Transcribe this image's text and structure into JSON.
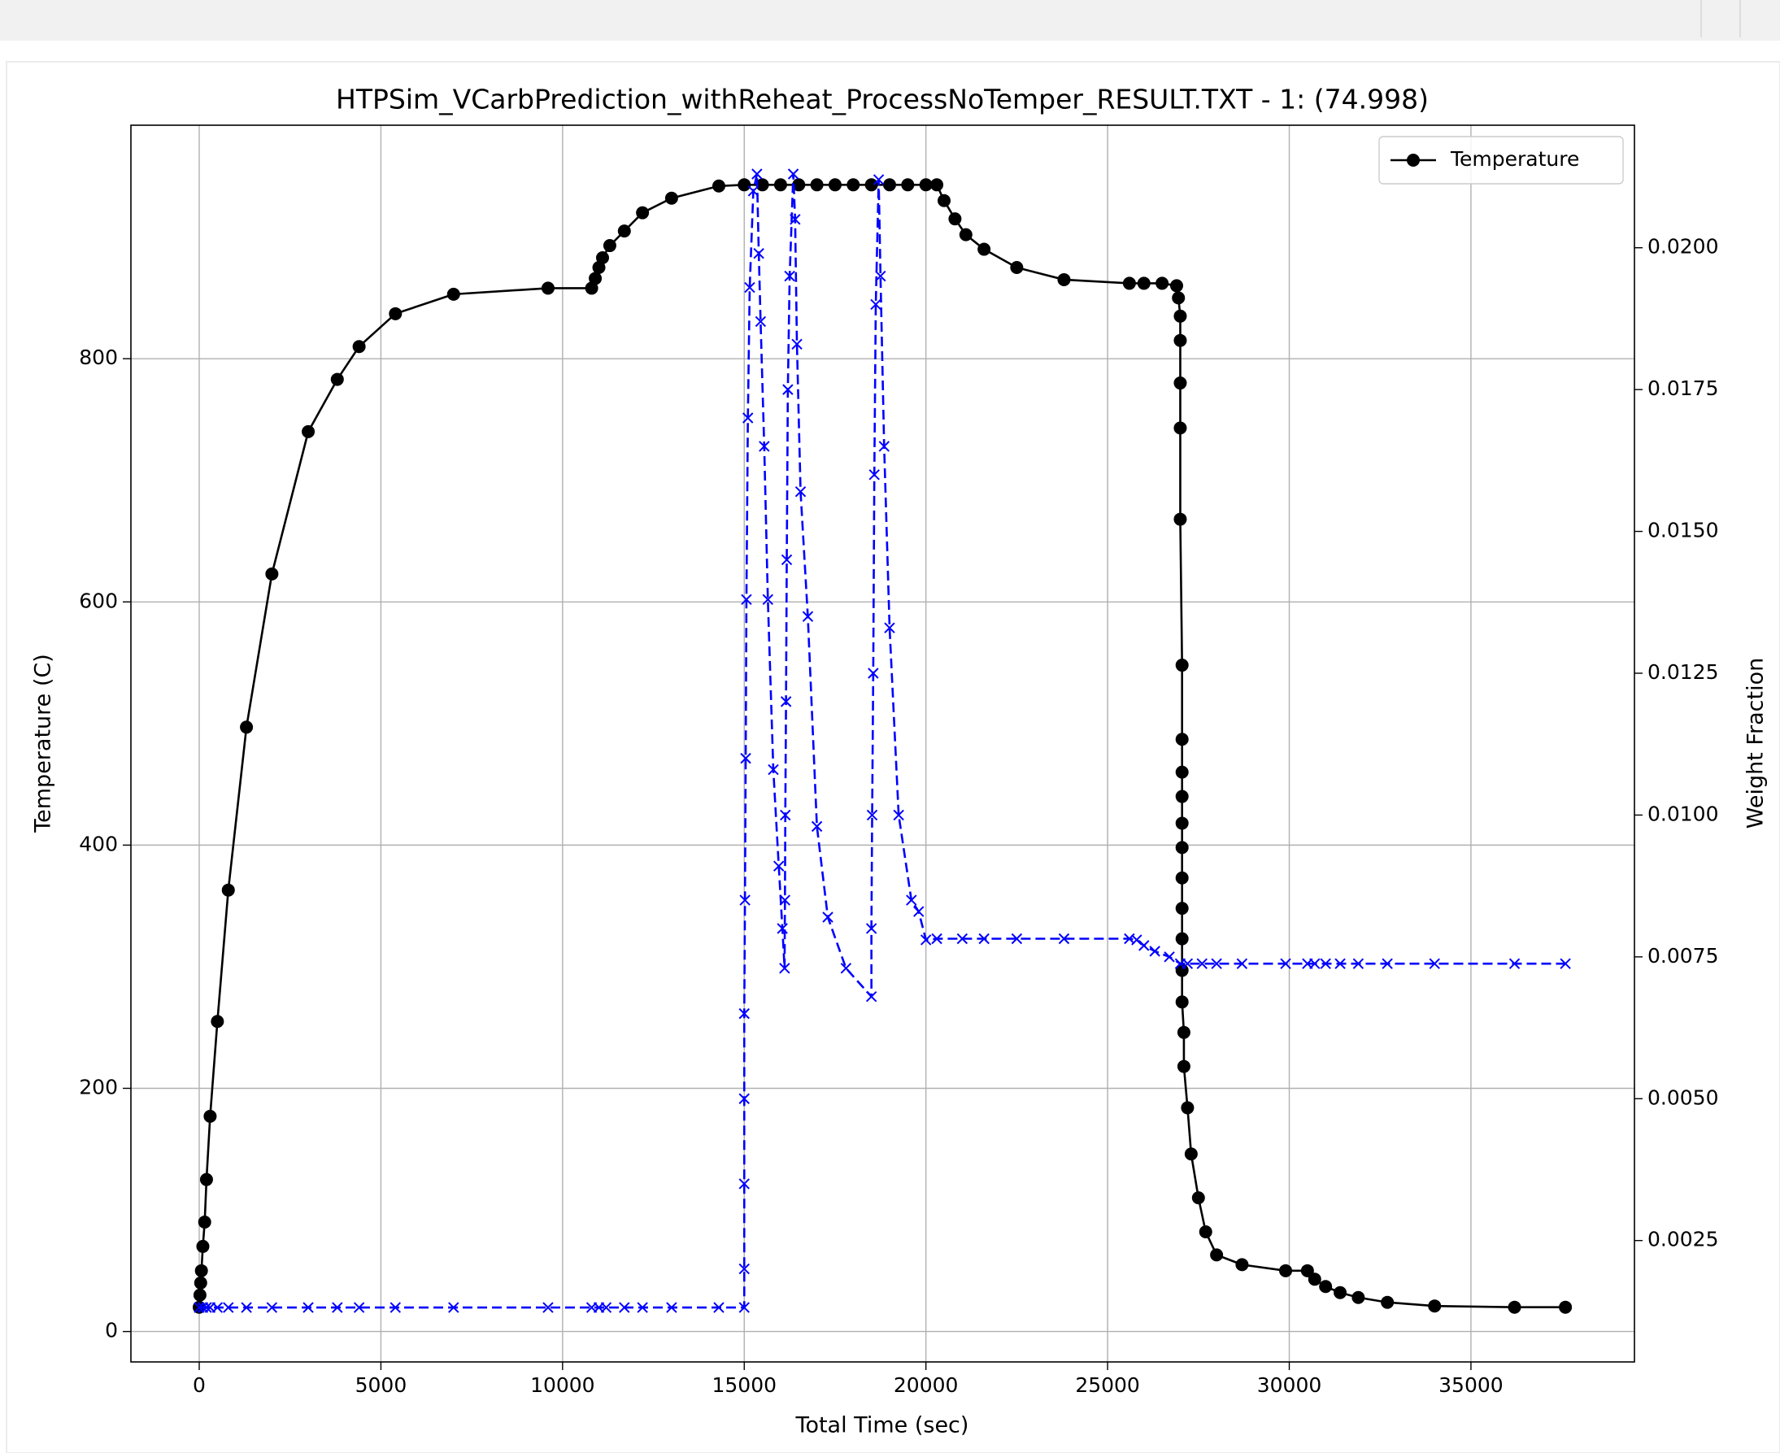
{
  "chart_data": {
    "type": "line",
    "title": "HTPSim_VCarbPrediction_withReheat_ProcessNoTemper_RESULT.TXT - 1: (74.998)",
    "x_label": "Total Time (sec)",
    "y_label": "Temperature (C)",
    "y2_label": "Weight Fraction",
    "xlim": [
      -1880,
      39500
    ],
    "ylim": [
      -25,
      992
    ],
    "y2lim": [
      0.00036,
      0.02216
    ],
    "xticks": [
      0,
      5000,
      10000,
      15000,
      20000,
      25000,
      30000,
      35000
    ],
    "yticks": [
      0,
      200,
      400,
      600,
      800
    ],
    "y2ticks": [
      0.0025,
      {
        "value": 0.005,
        "label": "0.0050"
      },
      0.0075,
      {
        "value": 0.01,
        "label": "0.0100"
      },
      0.0125,
      {
        "value": 0.015,
        "label": "0.0150"
      },
      0.0175,
      {
        "value": 0.02,
        "label": "0.0200"
      }
    ],
    "grid": true,
    "legend": "upper right",
    "series": [
      {
        "name": "Temperature",
        "color": "#000000",
        "marker": "o",
        "linestyle": "solid",
        "x": [
          0,
          20,
          40,
          60,
          100,
          150,
          200,
          300,
          500,
          800,
          1300,
          2000,
          3000,
          3800,
          4400,
          5400,
          7000,
          9600,
          10800,
          10900,
          11000,
          11100,
          11300,
          11700,
          12200,
          13000,
          14300,
          15000,
          15500,
          16000,
          16500,
          17000,
          17500,
          18000,
          18500,
          19000,
          19500,
          20000,
          20300,
          20500,
          20800,
          21100,
          21600,
          22500,
          23800,
          25600,
          26000,
          26500,
          26900,
          26950,
          27000,
          27000,
          27000,
          27000,
          27000,
          27050,
          27050,
          27050,
          27050,
          27050,
          27050,
          27050,
          27050,
          27050,
          27050,
          27050,
          27100,
          27100,
          27200,
          27300,
          27500,
          27700,
          28000,
          28700,
          29900,
          30500,
          30700,
          31000,
          31400,
          31900,
          32700,
          34000,
          36200,
          37600
        ],
        "values": [
          20,
          30,
          40,
          50,
          70,
          90,
          125,
          177,
          255,
          363,
          497,
          623,
          740,
          783,
          810,
          837,
          853,
          858,
          858,
          866,
          875,
          883,
          893,
          905,
          920,
          932,
          942,
          943,
          943,
          943,
          943,
          943,
          943,
          943,
          943,
          943,
          943,
          943,
          943,
          930,
          915,
          902,
          890,
          875,
          865,
          862,
          862,
          862,
          860,
          850,
          835,
          815,
          780,
          743,
          668,
          548,
          487,
          460,
          440,
          418,
          398,
          373,
          348,
          323,
          297,
          271,
          246,
          218,
          184,
          146,
          110,
          82,
          63,
          55,
          50,
          50,
          43,
          37,
          32,
          28,
          24,
          21,
          20,
          20
        ]
      },
      {
        "color": "#0000ff",
        "marker": "x",
        "linestyle": "dashed",
        "axis": "y2",
        "x": [
          0,
          100,
          200,
          300,
          500,
          800,
          1300,
          2000,
          3000,
          3800,
          4400,
          5400,
          7000,
          9600,
          10800,
          11000,
          11200,
          11700,
          12200,
          13000,
          14300,
          15000,
          15000,
          15000,
          15000,
          15000,
          15020,
          15040,
          15060,
          15100,
          15150,
          15250,
          15350,
          15400,
          15450,
          15550,
          15650,
          15800,
          15950,
          16050,
          16110,
          16120,
          16130,
          16150,
          16170,
          16200,
          16250,
          16350,
          16400,
          16450,
          16550,
          16750,
          17000,
          17300,
          17800,
          18500,
          18500,
          18520,
          18550,
          18580,
          18620,
          18700,
          18750,
          18850,
          19000,
          19250,
          19600,
          19800,
          20000,
          20300,
          21000,
          21600,
          22500,
          23800,
          25600,
          25800,
          26000,
          26300,
          26700,
          27000,
          27200,
          27600,
          28000,
          28700,
          29900,
          30500,
          30700,
          31000,
          31400,
          31900,
          32700,
          34000,
          36200,
          37600
        ],
        "values": [
          0.00132,
          0.00132,
          0.00132,
          0.00132,
          0.00132,
          0.00132,
          0.00132,
          0.00132,
          0.00132,
          0.00132,
          0.00132,
          0.00132,
          0.00132,
          0.00132,
          0.00132,
          0.00132,
          0.00132,
          0.00132,
          0.00132,
          0.00132,
          0.00132,
          0.00132,
          0.002,
          0.0035,
          0.005,
          0.0065,
          0.0085,
          0.011,
          0.0138,
          0.017,
          0.0193,
          0.021,
          0.0213,
          0.0199,
          0.0187,
          0.0165,
          0.0138,
          0.0108,
          0.0091,
          0.008,
          0.0073,
          0.0085,
          0.01,
          0.012,
          0.0145,
          0.0175,
          0.0195,
          0.0213,
          0.0205,
          0.0183,
          0.0157,
          0.0135,
          0.0098,
          0.0082,
          0.0073,
          0.0068,
          0.008,
          0.01,
          0.0125,
          0.016,
          0.019,
          0.0212,
          0.0195,
          0.0165,
          0.0133,
          0.01,
          0.0085,
          0.0083,
          0.0078,
          0.00782,
          0.00782,
          0.00782,
          0.00782,
          0.00782,
          0.00782,
          0.0078,
          0.0077,
          0.0076,
          0.0075,
          0.00738,
          0.00738,
          0.00738,
          0.00738,
          0.00738,
          0.00738,
          0.00738,
          0.00738,
          0.00738,
          0.00738,
          0.00738,
          0.00738,
          0.00738,
          0.00738,
          0.00738
        ]
      }
    ]
  }
}
